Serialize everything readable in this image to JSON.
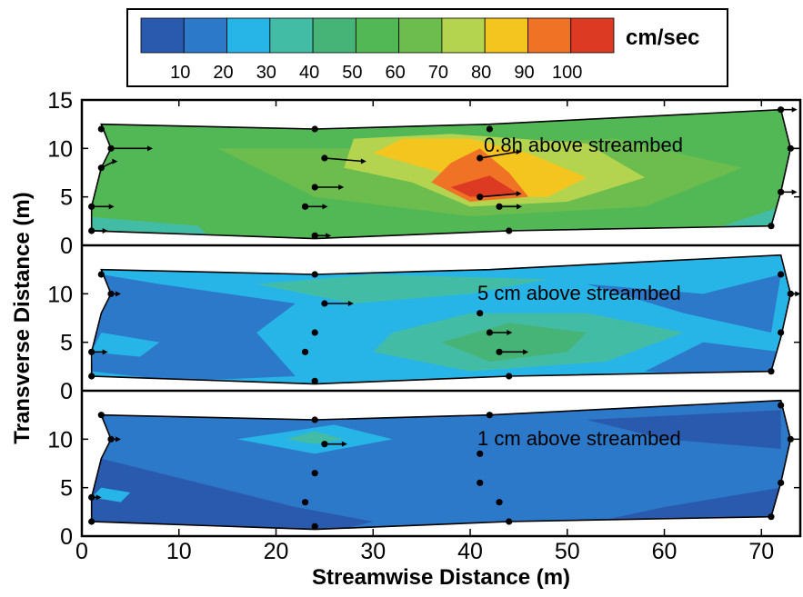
{
  "chart_data": {
    "type": "heatmap",
    "xlabel": "Streamwise Distance (m)",
    "ylabel": "Transverse Distance (m)",
    "xlim": [
      0,
      74
    ],
    "ylim": [
      0,
      15
    ],
    "xticks": [
      0,
      10,
      20,
      30,
      40,
      50,
      60,
      70
    ],
    "yticks_top": [
      0,
      5,
      10,
      15
    ],
    "yticks_other": [
      0,
      5,
      10
    ],
    "colorbar": {
      "unit": "cm/sec",
      "ticks": [
        10,
        20,
        30,
        40,
        50,
        60,
        70,
        80,
        90,
        100
      ],
      "colors": [
        "#2a5aad",
        "#2c78c9",
        "#27b5e8",
        "#43bca6",
        "#47b477",
        "#52b856",
        "#6cbd4d",
        "#b4d450",
        "#f5c51f",
        "#ef7225",
        "#dd3a23"
      ]
    },
    "panels": [
      {
        "label": "0.8h above streambed",
        "background": "#52b856",
        "zones": [
          {
            "color": "#6cbd4d",
            "pts": [
              [
                24,
                5
              ],
              [
                40,
                3
              ],
              [
                58,
                4
              ],
              [
                68,
                8
              ],
              [
                55,
                11
              ],
              [
                30,
                10
              ],
              [
                14,
                10
              ]
            ]
          },
          {
            "color": "#b4d450",
            "pts": [
              [
                27,
                8
              ],
              [
                34,
                6.5
              ],
              [
                40,
                4
              ],
              [
                50,
                4.5
              ],
              [
                58,
                7
              ],
              [
                52,
                10.5
              ],
              [
                38,
                11.5
              ],
              [
                28,
                11
              ]
            ]
          },
          {
            "color": "#f5c51f",
            "pts": [
              [
                30,
                9.5
              ],
              [
                37,
                7.5
              ],
              [
                40,
                5
              ],
              [
                48,
                5
              ],
              [
                52,
                7
              ],
              [
                46,
                9.5
              ],
              [
                40,
                11
              ],
              [
                33,
                11
              ]
            ]
          },
          {
            "color": "#ef7225",
            "pts": [
              [
                36,
                6.5
              ],
              [
                40,
                4.5
              ],
              [
                46,
                5
              ],
              [
                44,
                7.5
              ],
              [
                41,
                10
              ],
              [
                38,
                8.5
              ]
            ]
          },
          {
            "color": "#dd3a23",
            "pts": [
              [
                38,
                6
              ],
              [
                40,
                5
              ],
              [
                45,
                5.3
              ],
              [
                42,
                7.2
              ]
            ]
          },
          {
            "color": "#43bca6",
            "pts": [
              [
                0,
                0
              ],
              [
                14,
                0
              ],
              [
                12,
                2
              ],
              [
                0,
                3
              ]
            ]
          },
          {
            "color": "#43bca6",
            "pts": [
              [
                62,
                0
              ],
              [
                72,
                0
              ],
              [
                72,
                4
              ],
              [
                66,
                2
              ]
            ]
          }
        ],
        "stations": [
          {
            "x": 2,
            "y": 12,
            "u": 0,
            "v": 0
          },
          {
            "x": 3,
            "y": 10,
            "u": 6,
            "v": 0
          },
          {
            "x": 2,
            "y": 8,
            "u": 2,
            "v": 1
          },
          {
            "x": 1,
            "y": 4,
            "u": 3,
            "v": 0
          },
          {
            "x": 1,
            "y": 1.5,
            "u": 2,
            "v": 0
          },
          {
            "x": 24,
            "y": 12,
            "u": 0,
            "v": 0
          },
          {
            "x": 25,
            "y": 9,
            "u": 6,
            "v": -0.5
          },
          {
            "x": 24,
            "y": 6,
            "u": 4,
            "v": 0
          },
          {
            "x": 23,
            "y": 4,
            "u": 3,
            "v": 0
          },
          {
            "x": 24,
            "y": 1,
            "u": 2,
            "v": 0
          },
          {
            "x": 42,
            "y": 12,
            "u": 0,
            "v": 0
          },
          {
            "x": 41,
            "y": 9,
            "u": 6,
            "v": 1
          },
          {
            "x": 41,
            "y": 5,
            "u": 6,
            "v": 0.5
          },
          {
            "x": 43,
            "y": 4,
            "u": 3,
            "v": 0
          },
          {
            "x": 44,
            "y": 1.5,
            "u": 0,
            "v": 0
          },
          {
            "x": 72,
            "y": 14,
            "u": 2,
            "v": 0
          },
          {
            "x": 73,
            "y": 10,
            "u": 2,
            "v": 0
          },
          {
            "x": 72,
            "y": 5.5,
            "u": 2,
            "v": 0
          },
          {
            "x": 71,
            "y": 2,
            "u": 0,
            "v": 0
          }
        ]
      },
      {
        "label": "5 cm above streambed",
        "background": "#27b5e8",
        "zones": [
          {
            "color": "#2c78c9",
            "pts": [
              [
                1,
                2
              ],
              [
                10,
                1
              ],
              [
                22,
                1.5
              ],
              [
                18,
                6
              ],
              [
                22,
                9
              ],
              [
                8,
                11
              ],
              [
                2,
                12
              ]
            ]
          },
          {
            "color": "#2c78c9",
            "pts": [
              [
                52,
                11
              ],
              [
                64,
                10
              ],
              [
                72,
                12
              ],
              [
                71,
                6
              ],
              [
                62,
                8
              ]
            ]
          },
          {
            "color": "#2c78c9",
            "pts": [
              [
                58,
                2
              ],
              [
                72,
                1
              ],
              [
                72,
                4
              ],
              [
                64,
                5
              ]
            ]
          },
          {
            "color": "#43bca6",
            "pts": [
              [
                18,
                11
              ],
              [
                28,
                9
              ],
              [
                40,
                10
              ],
              [
                48,
                11.5
              ],
              [
                30,
                12
              ]
            ]
          },
          {
            "color": "#43bca6",
            "pts": [
              [
                30,
                4
              ],
              [
                40,
                2
              ],
              [
                54,
                3
              ],
              [
                62,
                6
              ],
              [
                52,
                8
              ],
              [
                40,
                8
              ],
              [
                32,
                6
              ]
            ]
          },
          {
            "color": "#47b477",
            "pts": [
              [
                37,
                5
              ],
              [
                42,
                3
              ],
              [
                50,
                4
              ],
              [
                52,
                6
              ],
              [
                44,
                7
              ]
            ]
          },
          {
            "color": "#27b5e8",
            "pts": [
              [
                1,
                4
              ],
              [
                6,
                3.5
              ],
              [
                8,
                5
              ],
              [
                2,
                6
              ]
            ]
          }
        ],
        "stations": [
          {
            "x": 2,
            "y": 12,
            "u": 0,
            "v": 0
          },
          {
            "x": 3,
            "y": 10,
            "u": 1,
            "v": 0
          },
          {
            "x": 1,
            "y": 4,
            "u": 2,
            "v": 0
          },
          {
            "x": 1,
            "y": 1.5,
            "u": 0,
            "v": 0
          },
          {
            "x": 24,
            "y": 12,
            "u": 0,
            "v": 0
          },
          {
            "x": 25,
            "y": 9,
            "u": 4,
            "v": 0
          },
          {
            "x": 24,
            "y": 6,
            "u": 0,
            "v": 0
          },
          {
            "x": 23,
            "y": 4,
            "u": 0,
            "v": 0
          },
          {
            "x": 24,
            "y": 1,
            "u": 0,
            "v": 0
          },
          {
            "x": 41,
            "y": 8,
            "u": 0,
            "v": 0
          },
          {
            "x": 42,
            "y": 6,
            "u": 3,
            "v": 0
          },
          {
            "x": 43,
            "y": 4,
            "u": 4,
            "v": 0
          },
          {
            "x": 44,
            "y": 1.5,
            "u": 0,
            "v": 0
          },
          {
            "x": 72,
            "y": 12,
            "u": 0,
            "v": 0
          },
          {
            "x": 73,
            "y": 10,
            "u": 1,
            "v": 0
          },
          {
            "x": 72,
            "y": 6,
            "u": 0,
            "v": 0
          },
          {
            "x": 71,
            "y": 2,
            "u": 0,
            "v": 0
          }
        ]
      },
      {
        "label": "1 cm above streambed",
        "background": "#2c78c9",
        "zones": [
          {
            "color": "#2a5aad",
            "pts": [
              [
                0,
                0
              ],
              [
                24,
                0
              ],
              [
                30,
                1.5
              ],
              [
                22,
                3
              ],
              [
                10,
                6
              ],
              [
                2,
                8
              ]
            ]
          },
          {
            "color": "#2a5aad",
            "pts": [
              [
                46,
                0
              ],
              [
                72,
                0
              ],
              [
                72,
                5
              ],
              [
                60,
                3
              ]
            ]
          },
          {
            "color": "#2a5aad",
            "pts": [
              [
                52,
                12
              ],
              [
                72,
                13
              ],
              [
                72,
                9
              ],
              [
                60,
                10
              ]
            ]
          },
          {
            "color": "#27b5e8",
            "pts": [
              [
                16,
                10
              ],
              [
                24,
                8.5
              ],
              [
                32,
                10
              ],
              [
                26,
                11.5
              ]
            ]
          },
          {
            "color": "#43bca6",
            "pts": [
              [
                21,
                10
              ],
              [
                24,
                9.5
              ],
              [
                27,
                10
              ],
              [
                24,
                10.8
              ]
            ]
          },
          {
            "color": "#27b5e8",
            "pts": [
              [
                1,
                4
              ],
              [
                4,
                3.5
              ],
              [
                5,
                4.5
              ],
              [
                2,
                5
              ]
            ]
          }
        ],
        "stations": [
          {
            "x": 2,
            "y": 12.5,
            "u": 0,
            "v": 0
          },
          {
            "x": 3,
            "y": 10,
            "u": 1,
            "v": 0
          },
          {
            "x": 1,
            "y": 4,
            "u": 1,
            "v": 0
          },
          {
            "x": 1,
            "y": 1.5,
            "u": 0,
            "v": 0
          },
          {
            "x": 24,
            "y": 12,
            "u": 0,
            "v": 0
          },
          {
            "x": 25,
            "y": 9.5,
            "u": 3,
            "v": 0
          },
          {
            "x": 24,
            "y": 6.5,
            "u": 0,
            "v": 0
          },
          {
            "x": 23,
            "y": 3.5,
            "u": 0,
            "v": 0
          },
          {
            "x": 24,
            "y": 1,
            "u": 0,
            "v": 0
          },
          {
            "x": 42,
            "y": 12.5,
            "u": 0,
            "v": 0
          },
          {
            "x": 41,
            "y": 8.5,
            "u": 0,
            "v": 0
          },
          {
            "x": 41,
            "y": 5.5,
            "u": 0,
            "v": 0
          },
          {
            "x": 43,
            "y": 3.5,
            "u": 0,
            "v": 0
          },
          {
            "x": 44,
            "y": 1.5,
            "u": 0,
            "v": 0
          },
          {
            "x": 72,
            "y": 13.5,
            "u": 0,
            "v": 0
          },
          {
            "x": 73,
            "y": 10,
            "u": 0,
            "v": 0
          },
          {
            "x": 72,
            "y": 5.5,
            "u": 0,
            "v": 0
          },
          {
            "x": 71,
            "y": 2,
            "u": 0,
            "v": 0
          }
        ]
      }
    ]
  }
}
